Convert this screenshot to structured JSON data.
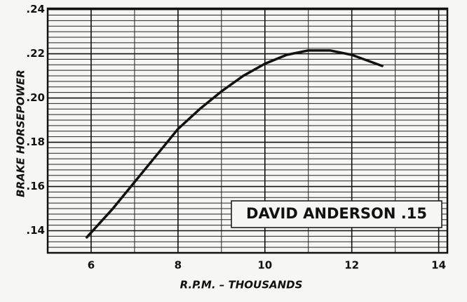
{
  "chart_data": {
    "type": "line",
    "x_label": "R.P.M. – THOUSANDS",
    "y_label": "BRAKE HORSEPOWER",
    "annotation": "DAVID ANDERSON .15",
    "x": [
      5.9,
      6.5,
      7,
      7.5,
      8,
      8.5,
      9,
      9.5,
      10,
      10.5,
      11,
      11.5,
      12,
      12.7
    ],
    "series": [
      {
        "color": "#111111",
        "values": [
          0.137,
          0.15,
          0.162,
          0.174,
          0.186,
          0.195,
          0.203,
          0.21,
          0.2155,
          0.2195,
          0.2215,
          0.2215,
          0.2195,
          0.2145
        ]
      }
    ],
    "xlim": [
      5,
      14.2
    ],
    "xticks": [
      6,
      8,
      10,
      12,
      14
    ],
    "ylim": [
      0.13,
      0.2405
    ],
    "yticks": [
      {
        "value": 0.14,
        "label": ".14"
      },
      {
        "value": 0.16,
        "label": ".16"
      },
      {
        "value": 0.18,
        "label": ".18"
      },
      {
        "value": 0.2,
        "label": ".20"
      },
      {
        "value": 0.22,
        "label": ".22"
      },
      {
        "value": 0.24,
        "label": ".24"
      }
    ],
    "grid": true
  }
}
